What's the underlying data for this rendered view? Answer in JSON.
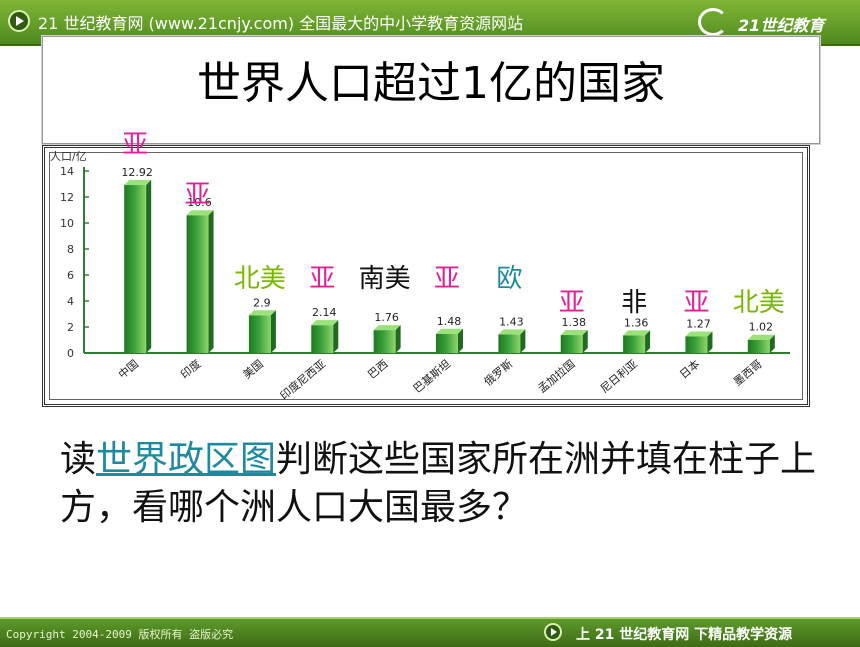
{
  "header": {
    "site_text": "21 世纪教育网 (www.21cnjy.com)  全国最大的中小学教育资源网站",
    "logo_text": "21世纪教育"
  },
  "title": "世界人口超过1亿的国家",
  "chart_data": {
    "type": "bar",
    "ylabel": "人口/亿",
    "ylim": [
      0,
      14
    ],
    "yticks": [
      "0",
      "2",
      "4",
      "6",
      "8",
      "10",
      "12",
      "14"
    ],
    "categories": [
      "中国",
      "印度",
      "美国",
      "印度尼西亚",
      "巴西",
      "巴基斯坦",
      "俄罗斯",
      "孟加拉国",
      "尼日利亚",
      "日本",
      "墨西哥"
    ],
    "values": [
      12.92,
      10.6,
      2.9,
      2.14,
      1.76,
      1.48,
      1.43,
      1.38,
      1.36,
      1.27,
      1.02
    ],
    "value_labels": [
      "12.92",
      "10.6",
      "2.9",
      "2.14",
      "1.76",
      "1.48",
      "1.43",
      "1.38",
      "1.36",
      "1.27",
      "1.02"
    ],
    "bar_color": "#3aa03a"
  },
  "annotations": [
    {
      "text": "亚",
      "color": "#e0209a"
    },
    {
      "text": "亚",
      "color": "#e0209a"
    },
    {
      "text": "北美",
      "color": "#7ab800"
    },
    {
      "text": "亚",
      "color": "#e0209a"
    },
    {
      "text": "南美",
      "color": "#111111"
    },
    {
      "text": "亚",
      "color": "#e0209a"
    },
    {
      "text": "欧",
      "color": "#1e8aa0"
    },
    {
      "text": "亚",
      "color": "#e0209a"
    },
    {
      "text": "非",
      "color": "#111111"
    },
    {
      "text": "亚",
      "color": "#e0209a"
    },
    {
      "text": "北美",
      "color": "#7ab800"
    }
  ],
  "question": {
    "prefix": "读",
    "link": "世界政区图",
    "suffix": "判断这些国家所在洲并填在柱子上方，看哪个洲人口大国最多？"
  },
  "footer": {
    "copyright": "Copyright 2004-2009 版权所有 盗版必究",
    "slogan": "上 21 世纪教育网   下精品教学资源"
  }
}
